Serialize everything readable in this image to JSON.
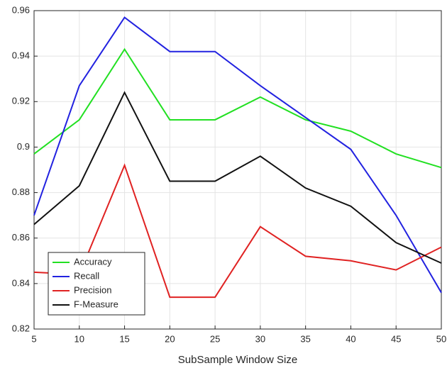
{
  "chart_data": {
    "type": "line",
    "xlabel": "SubSample Window Size",
    "x": [
      5,
      10,
      15,
      20,
      25,
      30,
      35,
      40,
      45,
      50
    ],
    "series": [
      {
        "name": "Accuracy",
        "color": "#22e022",
        "values": [
          0.897,
          0.912,
          0.943,
          0.912,
          0.912,
          0.922,
          0.912,
          0.907,
          0.897,
          0.891
        ]
      },
      {
        "name": "Recall",
        "color": "#2222e0",
        "values": [
          0.87,
          0.927,
          0.957,
          0.942,
          0.942,
          0.927,
          0.913,
          0.899,
          0.87,
          0.836
        ]
      },
      {
        "name": "Precision",
        "color": "#e02222",
        "values": [
          0.845,
          0.844,
          0.892,
          0.834,
          0.834,
          0.865,
          0.852,
          0.85,
          0.846,
          0.856
        ]
      },
      {
        "name": "F-Measure",
        "color": "#111111",
        "values": [
          0.866,
          0.883,
          0.924,
          0.885,
          0.885,
          0.896,
          0.882,
          0.874,
          0.858,
          0.849
        ]
      }
    ],
    "xlim": [
      5,
      50
    ],
    "xticks": [
      5,
      10,
      15,
      20,
      25,
      30,
      35,
      40,
      45,
      50
    ],
    "ylim": [
      0.82,
      0.96
    ],
    "yticks": [
      0.82,
      0.84,
      0.86,
      0.88,
      0.9,
      0.92,
      0.94,
      0.96
    ],
    "grid": true,
    "legend": "lower-left"
  }
}
